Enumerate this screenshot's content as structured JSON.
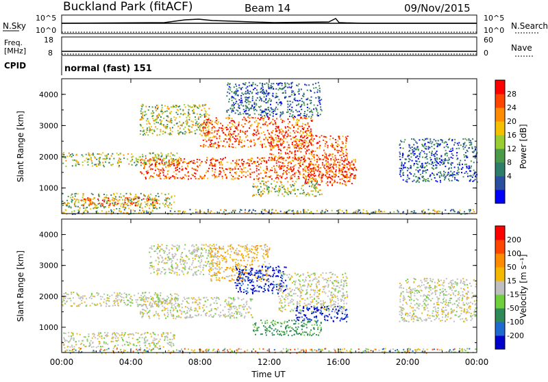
{
  "header": {
    "station": "Buckland Park (fitACF)",
    "beam": "Beam 14",
    "date": "09/Nov/2015"
  },
  "noise_panel": {
    "left_label": "N.Sky",
    "right_label": "N.Search",
    "left_ticks": [
      "10^5",
      "10^0"
    ],
    "right_ticks": [
      "10^5",
      "10^0"
    ]
  },
  "freq_panel": {
    "left_label_1": "Freq.",
    "left_label_2": "[MHz]",
    "right_label": "Nave",
    "left_ticks": [
      "18",
      "8"
    ],
    "right_ticks": [
      "60",
      "0"
    ]
  },
  "cpid": {
    "label": "CPID",
    "mode": "normal (fast) 151"
  },
  "power_colorbar": {
    "label": "Power [dB]",
    "ticks": [
      "28",
      "24",
      "20",
      "16",
      "12",
      "8",
      "4"
    ],
    "colors": [
      "#0000ff",
      "#2b4fa0",
      "#2e7d6a",
      "#4a9a4a",
      "#9acd32",
      "#f5c000",
      "#ff8c00",
      "#ff4500",
      "#ff0000"
    ]
  },
  "velocity_colorbar": {
    "label": "Velocity [m s⁻¹]",
    "ticks": [
      "200",
      "100",
      "50",
      "15",
      "-15",
      "-50",
      "-100",
      "-200"
    ],
    "colors": [
      "#0000cd",
      "#1e6ad0",
      "#2e8b57",
      "#6fcf3c",
      "#bfbfbf",
      "#f5b800",
      "#ff8c00",
      "#ff4500",
      "#ff0000"
    ]
  },
  "axes": {
    "ylabel": "Slant Range [km]",
    "xlabel": "Time UT",
    "y_ticks": [
      "4000",
      "3000",
      "2000",
      "1000"
    ],
    "x_ticks": [
      "00:00",
      "04:00",
      "08:00",
      "12:00",
      "16:00",
      "20:00",
      "00:00"
    ]
  },
  "chart_data": {
    "type": "heatmap",
    "x_range_hours": [
      0,
      24
    ],
    "y_range_km": [
      180,
      4500
    ],
    "power_scatter_regions": [
      {
        "t": [
          0,
          6.8
        ],
        "r": [
          1700,
          2150
        ],
        "level": "mid"
      },
      {
        "t": [
          0,
          6.5
        ],
        "r": [
          350,
          850
        ],
        "level": "mid"
      },
      {
        "t": [
          1.0,
          5.5
        ],
        "r": [
          450,
          700
        ],
        "level": "high"
      },
      {
        "t": [
          4.5,
          17.0
        ],
        "r": [
          1300,
          2000
        ],
        "level": "high"
      },
      {
        "t": [
          4.5,
          8.5
        ],
        "r": [
          2700,
          3700
        ],
        "level": "mid"
      },
      {
        "t": [
          8.0,
          14.5
        ],
        "r": [
          2300,
          3300
        ],
        "level": "high"
      },
      {
        "t": [
          9.5,
          15.0
        ],
        "r": [
          3300,
          4400
        ],
        "level": "low"
      },
      {
        "t": [
          12.0,
          16.5
        ],
        "r": [
          1900,
          2700
        ],
        "level": "high"
      },
      {
        "t": [
          14.0,
          17.0
        ],
        "r": [
          1100,
          1800
        ],
        "level": "high"
      },
      {
        "t": [
          11.0,
          15.0
        ],
        "r": [
          750,
          1250
        ],
        "level": "mid"
      },
      {
        "t": [
          19.5,
          24.0
        ],
        "r": [
          1200,
          2600
        ],
        "level": "low"
      },
      {
        "t": [
          0,
          24
        ],
        "r": [
          180,
          330
        ],
        "level": "noise"
      }
    ],
    "velocity_scatter_regions": [
      {
        "t": [
          0,
          6.8
        ],
        "r": [
          1700,
          2150
        ],
        "v": "grey"
      },
      {
        "t": [
          0,
          6.5
        ],
        "r": [
          350,
          850
        ],
        "v": "grey"
      },
      {
        "t": [
          4.5,
          11.0
        ],
        "r": [
          1300,
          2000
        ],
        "v": "grey"
      },
      {
        "t": [
          5.0,
          9.0
        ],
        "r": [
          2700,
          3700
        ],
        "v": "grey"
      },
      {
        "t": [
          8.5,
          12.0
        ],
        "r": [
          2500,
          3700
        ],
        "v": "orange"
      },
      {
        "t": [
          10.0,
          13.0
        ],
        "r": [
          2100,
          3000
        ],
        "v": "blue"
      },
      {
        "t": [
          12.5,
          16.5
        ],
        "r": [
          1500,
          2800
        ],
        "v": "grey"
      },
      {
        "t": [
          13.5,
          16.5
        ],
        "r": [
          1200,
          1700
        ],
        "v": "blue"
      },
      {
        "t": [
          11.0,
          15.0
        ],
        "r": [
          750,
          1250
        ],
        "v": "green"
      },
      {
        "t": [
          19.5,
          24.0
        ],
        "r": [
          1200,
          2600
        ],
        "v": "grey"
      },
      {
        "t": [
          0,
          24
        ],
        "r": [
          180,
          330
        ],
        "v": "mixed"
      }
    ]
  }
}
